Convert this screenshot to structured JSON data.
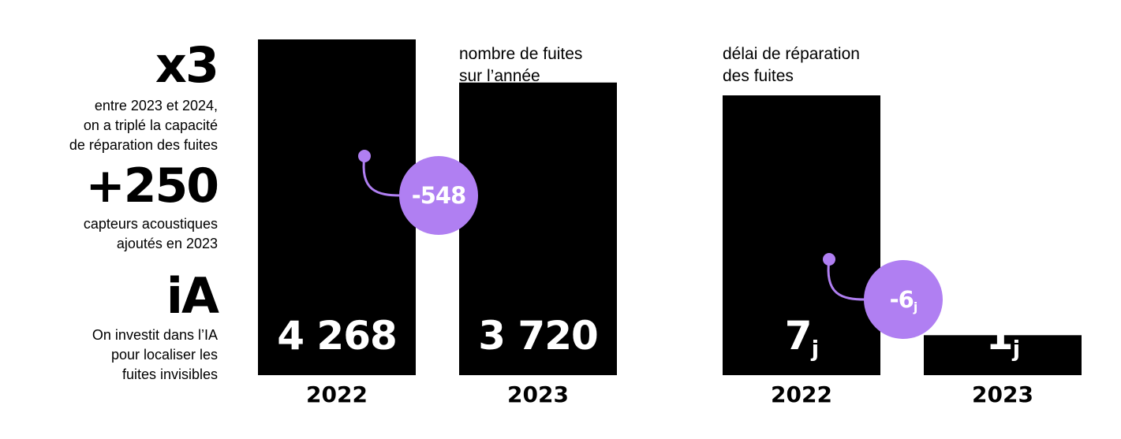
{
  "stats": [
    {
      "value": "x3",
      "lines": [
        "entre 2023 et 2024,",
        "on a triplé la capacité",
        "de réparation des fuites"
      ]
    },
    {
      "value": "+250",
      "lines": [
        "capteurs acoustiques",
        "ajoutés en 2023"
      ]
    },
    {
      "value": "iA",
      "lines": [
        "On investit dans l’IA",
        "pour localiser les",
        "fuites invisibles"
      ]
    }
  ],
  "colors": {
    "bar": "#000000",
    "accent": "#b07ff2",
    "label": "#ffffff"
  },
  "chart_data": [
    {
      "type": "bar",
      "title": "nombre de fuites\nsur l’année",
      "title_lines": [
        "nombre de fuites",
        "sur l’année"
      ],
      "categories": [
        "2022",
        "2023"
      ],
      "values": [
        4268,
        3720
      ],
      "value_labels": [
        "4 268",
        "3 720"
      ],
      "unit": "",
      "ylim": [
        0,
        4268
      ],
      "annotation": {
        "label": "-548"
      }
    },
    {
      "type": "bar",
      "title": "délai de réparation\ndes fuites",
      "title_lines": [
        "délai de réparation",
        "des fuites"
      ],
      "categories": [
        "2022",
        "2023"
      ],
      "values": [
        7,
        1
      ],
      "value_labels": [
        "7",
        "1"
      ],
      "unit": "j",
      "ylim": [
        0,
        7
      ],
      "annotation": {
        "label": "-6",
        "unit": "j"
      }
    }
  ]
}
